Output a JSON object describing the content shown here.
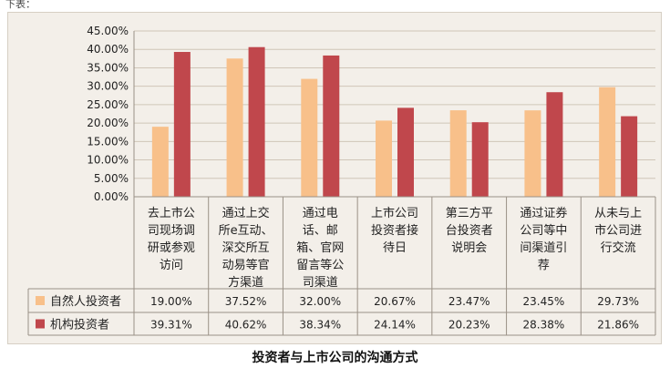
{
  "corner_text": "下表：",
  "caption": "投资者与上市公司的沟通方式",
  "colors": {
    "series_1": "#f8c08a",
    "series_2": "#c0474c",
    "grid": "#cfc6b8",
    "background": "#f3efe9"
  },
  "chart_data": {
    "type": "bar",
    "title": "",
    "xlabel": "",
    "ylabel": "",
    "ylim": [
      0,
      45
    ],
    "y_ticks": [
      "0.00%",
      "5.00%",
      "10.00%",
      "15.00%",
      "20.00%",
      "25.00%",
      "30.00%",
      "35.00%",
      "40.00%",
      "45.00%"
    ],
    "categories": [
      [
        "去上市公",
        "司现场调",
        "研或参观",
        "访问"
      ],
      [
        "通过上交",
        "所e互动、",
        "深交所互",
        "动易等官",
        "方渠道"
      ],
      [
        "通过电",
        "话、邮",
        "箱、官网",
        "留言等公",
        "司渠道"
      ],
      [
        "上市公司",
        "投资者接",
        "待日"
      ],
      [
        "第三方平",
        "台投资者",
        "说明会"
      ],
      [
        "通过证券",
        "公司等中",
        "间渠道引",
        "荐"
      ],
      [
        "从未与上",
        "市公司进",
        "行交流"
      ]
    ],
    "series": [
      {
        "name": "自然人投资者",
        "values": [
          19.0,
          37.52,
          32.0,
          20.67,
          23.47,
          23.45,
          29.73
        ],
        "labels": [
          "19.00%",
          "37.52%",
          "32.00%",
          "20.67%",
          "23.47%",
          "23.45%",
          "29.73%"
        ]
      },
      {
        "name": "机构投资者",
        "values": [
          39.31,
          40.62,
          38.34,
          24.14,
          20.23,
          28.38,
          21.86
        ],
        "labels": [
          "39.31%",
          "40.62%",
          "38.34%",
          "24.14%",
          "20.23%",
          "28.38%",
          "21.86%"
        ]
      }
    ],
    "legend": "bottom-table",
    "grid": true
  }
}
